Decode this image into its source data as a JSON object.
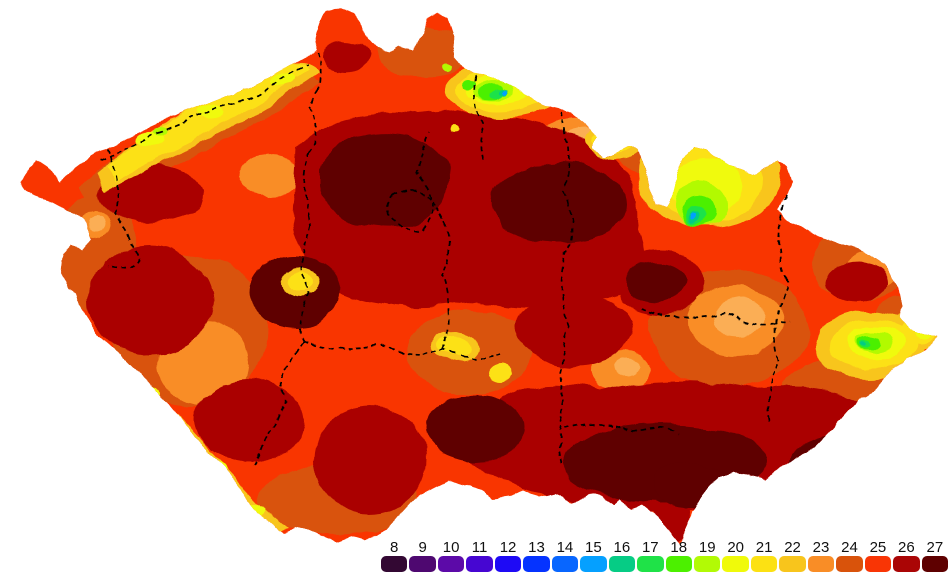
{
  "map": {
    "boundary_color": "#000000",
    "background": "#FFFFFF"
  },
  "palette": {
    "v8": "#330833",
    "v9": "#4E0870",
    "v10": "#5C0AA8",
    "v11": "#4606D2",
    "v12": "#1E0AF5",
    "v13": "#0533FF",
    "v14": "#0866FF",
    "v15": "#05A0FF",
    "v16": "#06CC85",
    "v17": "#1FE248",
    "v18": "#4CF000",
    "v19": "#B2FA05",
    "v20": "#F0FA0A",
    "v21": "#FCE113",
    "v22": "#F8C51C",
    "v23": "#F98D26",
    "apricot": "#FBAE54",
    "v24": "#D9530B",
    "v25": "#F93505",
    "v26": "#AA0505",
    "v27": "#5E0000"
  },
  "legend": {
    "label_color": "#111111",
    "items": [
      {
        "value": "8",
        "color": "#330833"
      },
      {
        "value": "9",
        "color": "#4E0870"
      },
      {
        "value": "10",
        "color": "#5C0AA8"
      },
      {
        "value": "11",
        "color": "#4606D2"
      },
      {
        "value": "12",
        "color": "#1E0AF5"
      },
      {
        "value": "13",
        "color": "#0533FF"
      },
      {
        "value": "14",
        "color": "#0866FF"
      },
      {
        "value": "15",
        "color": "#05A0FF"
      },
      {
        "value": "16",
        "color": "#06CC85"
      },
      {
        "value": "17",
        "color": "#1FE248"
      },
      {
        "value": "18",
        "color": "#4CF000"
      },
      {
        "value": "19",
        "color": "#B2FA05"
      },
      {
        "value": "20",
        "color": "#F0FA0A"
      },
      {
        "value": "21",
        "color": "#FCE113"
      },
      {
        "value": "22",
        "color": "#F8C51C"
      },
      {
        "value": "23",
        "color": "#F98D26"
      },
      {
        "value": "24",
        "color": "#D9530B"
      },
      {
        "value": "25",
        "color": "#F93505"
      },
      {
        "value": "26",
        "color": "#AA0505"
      },
      {
        "value": "27",
        "color": "#5E0000"
      }
    ]
  },
  "chart_data": {
    "type": "heatmap",
    "legend_position": "bottom-right",
    "scale_values": [
      8,
      9,
      10,
      11,
      12,
      13,
      14,
      15,
      16,
      17,
      18,
      19,
      20,
      21,
      22,
      23,
      24,
      25,
      26,
      27
    ],
    "scale_colors": [
      "#330833",
      "#4E0870",
      "#5C0AA8",
      "#4606D2",
      "#1E0AF5",
      "#0533FF",
      "#0866FF",
      "#05A0FF",
      "#06CC85",
      "#1FE248",
      "#4CF000",
      "#B2FA05",
      "#F0FA0A",
      "#FCE113",
      "#F8C51C",
      "#F98D26",
      "#D9530B",
      "#F93505",
      "#AA0505",
      "#5E0000"
    ],
    "dominant_map_values": [
      23,
      24,
      25,
      26,
      27
    ]
  }
}
